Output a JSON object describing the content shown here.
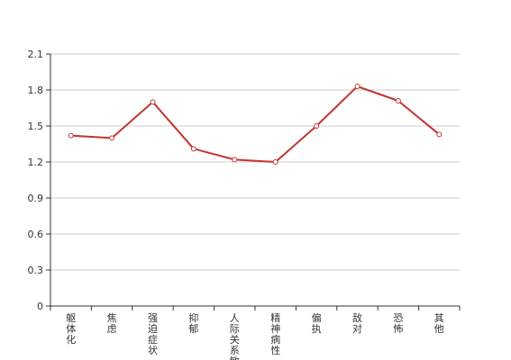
{
  "chart_data": {
    "type": "line",
    "categories": [
      "躯体化",
      "焦虑",
      "强迫症状",
      "抑郁",
      "人际关系敏感",
      "精神病性",
      "偏执",
      "敌对",
      "恐怖",
      "其他"
    ],
    "series": [
      {
        "values": [
          1.42,
          1.4,
          1.7,
          1.31,
          1.22,
          1.2,
          1.5,
          1.83,
          1.71,
          1.43
        ]
      }
    ],
    "ylim": [
      0,
      2.1
    ],
    "yticks": [
      0,
      0.3,
      0.6,
      0.9,
      1.2,
      1.5,
      1.8,
      2.1
    ],
    "ytick_labels": [
      "0",
      "0.3",
      "0.6",
      "0.9",
      "1.2",
      "1.5",
      "1.8",
      "2.1"
    ],
    "grid": true,
    "title": "",
    "xlabel": "",
    "ylabel": "",
    "colors": {
      "line": "#c23531",
      "grid": "#cccccc",
      "axis": "#333333"
    }
  }
}
